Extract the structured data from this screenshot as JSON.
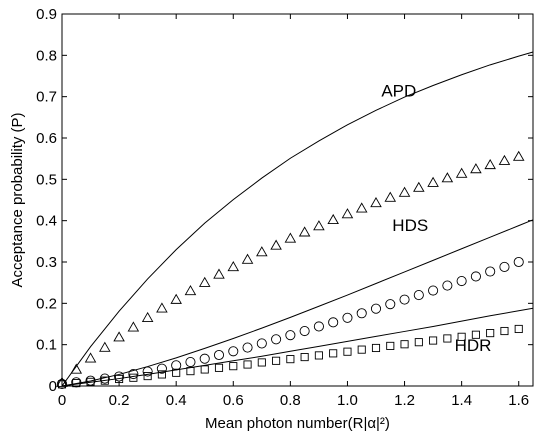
{
  "chart_data": {
    "type": "line",
    "title": "",
    "xlabel": "Mean photon number(R|α|²)",
    "ylabel": "Acceptance probability (P)",
    "xlim": [
      0,
      1.65
    ],
    "ylim": [
      0,
      0.9
    ],
    "xticks": [
      0,
      0.2,
      0.4,
      0.6,
      0.8,
      1.0,
      1.2,
      1.4,
      1.6
    ],
    "xtick_labels": [
      "0",
      "0.2",
      "0.4",
      "0.6",
      "0.8",
      "1.0",
      "1.2",
      "1.4",
      "1.6"
    ],
    "yticks": [
      0,
      0.1,
      0.2,
      0.3,
      0.4,
      0.5,
      0.6,
      0.7,
      0.8,
      0.9
    ],
    "ytick_labels": [
      "0",
      "0.1",
      "0.2",
      "0.3",
      "0.4",
      "0.5",
      "0.6",
      "0.7",
      "0.8",
      "0.9"
    ],
    "grid": false,
    "annotations": [
      {
        "text": "APD",
        "x": 1.18,
        "y": 0.7
      },
      {
        "text": "HDS",
        "x": 1.22,
        "y": 0.375
      },
      {
        "text": "HDR",
        "x": 1.44,
        "y": 0.085
      }
    ],
    "series": [
      {
        "kind": "curve",
        "x": [
          0,
          0.1,
          0.2,
          0.3,
          0.4,
          0.5,
          0.6,
          0.7,
          0.8,
          0.9,
          1.0,
          1.1,
          1.2,
          1.3,
          1.4,
          1.5,
          1.6,
          1.65
        ],
        "values": [
          0,
          0.095,
          0.181,
          0.259,
          0.33,
          0.394,
          0.451,
          0.503,
          0.551,
          0.593,
          0.632,
          0.667,
          0.699,
          0.727,
          0.753,
          0.777,
          0.798,
          0.808
        ]
      },
      {
        "kind": "markers",
        "marker": "triangle",
        "x": [
          0.0,
          0.05,
          0.1,
          0.15,
          0.2,
          0.25,
          0.3,
          0.35,
          0.4,
          0.45,
          0.5,
          0.55,
          0.6,
          0.65,
          0.7,
          0.75,
          0.8,
          0.85,
          0.9,
          0.95,
          1.0,
          1.05,
          1.1,
          1.15,
          1.2,
          1.25,
          1.3,
          1.35,
          1.4,
          1.45,
          1.5,
          1.55,
          1.6
        ],
        "values": [
          0.008,
          0.04,
          0.067,
          0.093,
          0.118,
          0.142,
          0.165,
          0.188,
          0.209,
          0.23,
          0.25,
          0.27,
          0.288,
          0.306,
          0.324,
          0.34,
          0.357,
          0.372,
          0.387,
          0.402,
          0.416,
          0.43,
          0.443,
          0.456,
          0.468,
          0.48,
          0.492,
          0.503,
          0.514,
          0.525,
          0.535,
          0.545,
          0.555
        ]
      },
      {
        "kind": "curve",
        "x": [
          0,
          0.1,
          0.2,
          0.3,
          0.4,
          0.5,
          0.6,
          0.7,
          0.8,
          0.9,
          1.0,
          1.1,
          1.2,
          1.3,
          1.4,
          1.5,
          1.6,
          1.65
        ],
        "values": [
          0,
          0.012,
          0.028,
          0.047,
          0.068,
          0.091,
          0.115,
          0.14,
          0.166,
          0.193,
          0.22,
          0.248,
          0.276,
          0.304,
          0.332,
          0.36,
          0.388,
          0.402
        ]
      },
      {
        "kind": "markers",
        "marker": "circle",
        "x": [
          0.0,
          0.05,
          0.1,
          0.15,
          0.2,
          0.25,
          0.3,
          0.35,
          0.4,
          0.45,
          0.5,
          0.55,
          0.6,
          0.65,
          0.7,
          0.75,
          0.8,
          0.85,
          0.9,
          0.95,
          1.0,
          1.05,
          1.1,
          1.15,
          1.2,
          1.25,
          1.3,
          1.35,
          1.4,
          1.45,
          1.5,
          1.55,
          1.6
        ],
        "values": [
          0.005,
          0.009,
          0.013,
          0.018,
          0.023,
          0.029,
          0.035,
          0.042,
          0.05,
          0.058,
          0.066,
          0.075,
          0.084,
          0.093,
          0.103,
          0.113,
          0.123,
          0.133,
          0.144,
          0.154,
          0.165,
          0.176,
          0.187,
          0.198,
          0.209,
          0.22,
          0.231,
          0.243,
          0.254,
          0.265,
          0.277,
          0.288,
          0.3
        ]
      },
      {
        "kind": "curve",
        "x": [
          0,
          0.1,
          0.2,
          0.3,
          0.4,
          0.5,
          0.6,
          0.7,
          0.8,
          0.9,
          1.0,
          1.1,
          1.2,
          1.3,
          1.4,
          1.5,
          1.6,
          1.65
        ],
        "values": [
          0,
          0.009,
          0.018,
          0.028,
          0.039,
          0.05,
          0.061,
          0.072,
          0.084,
          0.096,
          0.108,
          0.12,
          0.132,
          0.144,
          0.157,
          0.17,
          0.182,
          0.188
        ]
      },
      {
        "kind": "markers",
        "marker": "square",
        "x": [
          0.0,
          0.05,
          0.1,
          0.15,
          0.2,
          0.25,
          0.3,
          0.35,
          0.4,
          0.45,
          0.5,
          0.55,
          0.6,
          0.65,
          0.7,
          0.75,
          0.8,
          0.85,
          0.9,
          0.95,
          1.0,
          1.05,
          1.1,
          1.15,
          1.2,
          1.25,
          1.3,
          1.35,
          1.4,
          1.45,
          1.5,
          1.55,
          1.6
        ],
        "values": [
          0.004,
          0.007,
          0.01,
          0.013,
          0.017,
          0.02,
          0.024,
          0.028,
          0.032,
          0.036,
          0.04,
          0.044,
          0.048,
          0.052,
          0.057,
          0.061,
          0.065,
          0.07,
          0.074,
          0.079,
          0.083,
          0.088,
          0.092,
          0.097,
          0.101,
          0.106,
          0.11,
          0.115,
          0.119,
          0.124,
          0.128,
          0.133,
          0.138
        ]
      }
    ]
  }
}
